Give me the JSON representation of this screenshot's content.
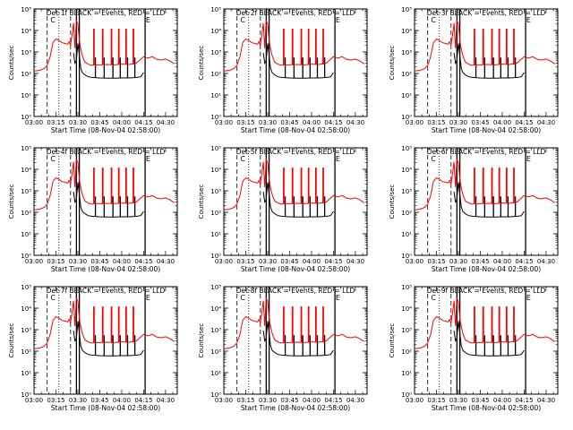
{
  "chart_data": {
    "type": "line",
    "layout": "3x3 grid",
    "y_scale": "log",
    "ylim": [
      1,
      100000
    ],
    "xlim": [
      "03:00",
      "04:38"
    ],
    "ylabel": "Counts/sec",
    "xlabel": "Start Time (08-Nov-04 02:58:00)",
    "x_tick_labels": [
      "03:00",
      "03:15",
      "03:30",
      "03:45",
      "04:00",
      "04:15",
      "04:30"
    ],
    "y_tick_labels": [
      "10⁰",
      "10¹",
      "10²",
      "10³",
      "10⁴",
      "10⁵"
    ],
    "series_colors": {
      "events": "#000000",
      "lld": "#ff0000"
    },
    "legend_text": "BLACK = Events, RED = LLD",
    "marker_glyphs": [
      "C",
      "E"
    ],
    "panels": [
      {
        "title": "Det-1f BLACK = Events, RED = LLD"
      },
      {
        "title": "Det-2f BLACK = Events, RED = LLD"
      },
      {
        "title": "Det-3f BLACK = Events, RED = LLD"
      },
      {
        "title": "Det-4f BLACK = Events, RED = LLD"
      },
      {
        "title": "Det-5f BLACK = Events, RED = LLD"
      },
      {
        "title": "Det-6f BLACK = Events, RED = LLD"
      },
      {
        "title": "Det-7f BLACK = Events, RED = LLD"
      },
      {
        "title": "Det-8f BLACK = Events, RED = LLD"
      },
      {
        "title": "Det-9f BLACK = Events, RED = LLD"
      }
    ],
    "vertical_markers": [
      {
        "x": "03:09",
        "style": "dashed"
      },
      {
        "x": "03:17",
        "style": "dotted"
      },
      {
        "x": "03:25",
        "style": "dashed"
      },
      {
        "x": "03:29",
        "style": "solid"
      },
      {
        "x": "03:31",
        "style": "solid"
      },
      {
        "x": "04:16",
        "style": "solid"
      }
    ],
    "series": [
      {
        "name": "LLD",
        "color": "#ff0000",
        "x": [
          "03:00",
          "03:04",
          "03:07",
          "03:09",
          "03:11",
          "03:13",
          "03:15",
          "03:17",
          "03:19",
          "03:21",
          "03:23",
          "03:24",
          "03:25",
          "03:26",
          "03:27",
          "03:28",
          "03:29",
          "03:30",
          "03:31",
          "03:32",
          "03:33",
          "03:34",
          "03:35",
          "03:37",
          "03:39",
          "03:42",
          "03:45",
          "03:50",
          "03:55",
          "04:00",
          "04:05",
          "04:10",
          "04:15",
          "04:18",
          "04:21",
          "04:24",
          "04:27",
          "04:30",
          "04:33",
          "04:36"
        ],
        "values": [
          130,
          140,
          170,
          240,
          600,
          2800,
          4000,
          3500,
          2700,
          2500,
          2300,
          3000,
          2000,
          6000,
          22000,
          1500,
          30000,
          20000,
          3500,
          1400,
          700,
          450,
          330,
          270,
          240,
          250,
          250,
          260,
          250,
          270,
          260,
          300,
          600,
          520,
          600,
          450,
          420,
          470,
          380,
          280
        ]
      },
      {
        "name": "Events",
        "color": "#000000",
        "x": [
          "03:27",
          "03:28",
          "03:29",
          "03:30",
          "03:31",
          "03:32",
          "03:33",
          "03:34",
          "03:35",
          "03:37",
          "03:40",
          "03:45",
          "03:50",
          "03:55",
          "04:00",
          "04:05",
          "04:10",
          "04:13",
          "04:15"
        ],
        "values": [
          900,
          300,
          400,
          2500,
          700,
          180,
          110,
          95,
          85,
          70,
          65,
          62,
          60,
          60,
          62,
          62,
          65,
          70,
          110
        ]
      },
      {
        "name": "Events spikes",
        "color": "#000000",
        "x": [
          "03:42",
          "03:48",
          "03:54",
          "03:59",
          "04:04",
          "04:09"
        ],
        "values": [
          550,
          550,
          550,
          550,
          550,
          550
        ]
      },
      {
        "name": "LLD spikes",
        "color": "#ff0000",
        "x": [
          "03:41",
          "03:47",
          "03:53",
          "03:58",
          "04:03",
          "04:08"
        ],
        "values": [
          12000,
          12000,
          12000,
          12000,
          12000,
          12000
        ]
      }
    ]
  }
}
